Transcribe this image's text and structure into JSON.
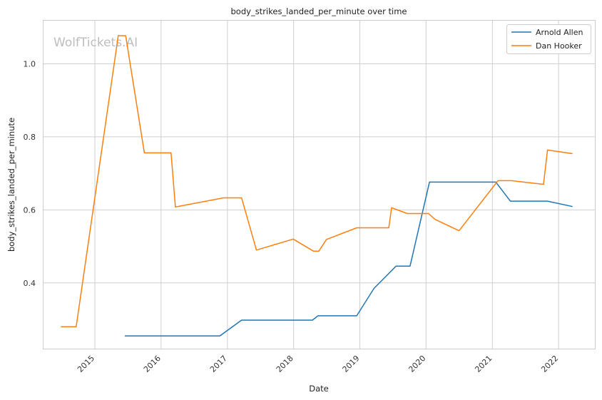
{
  "chart_data": {
    "type": "line",
    "title": "body_strikes_landed_per_minute over time",
    "xlabel": "Date",
    "ylabel": "body_strikes_landed_per_minute",
    "watermark": "WolfTickets.AI",
    "xlim": [
      "2014-03-20",
      "2022-07-20"
    ],
    "ylim": [
      0.22,
      1.12
    ],
    "x_ticks": [
      "2015",
      "2016",
      "2017",
      "2018",
      "2019",
      "2020",
      "2021",
      "2022"
    ],
    "y_ticks": [
      "0.4",
      "0.6",
      "0.8",
      "1.0"
    ],
    "legend_position": "top-right",
    "grid": true,
    "series": [
      {
        "name": "Arnold Allen",
        "color": "#1f77b4",
        "points": [
          [
            "2015-06-15",
            0.255
          ],
          [
            "2016-11-20",
            0.255
          ],
          [
            "2017-03-20",
            0.298
          ],
          [
            "2018-04-15",
            0.298
          ],
          [
            "2018-05-15",
            0.31
          ],
          [
            "2018-12-15",
            0.31
          ],
          [
            "2019-03-20",
            0.385
          ],
          [
            "2019-07-20",
            0.446
          ],
          [
            "2019-10-05",
            0.446
          ],
          [
            "2020-01-20",
            0.676
          ],
          [
            "2021-01-20",
            0.676
          ],
          [
            "2021-04-10",
            0.624
          ],
          [
            "2021-11-01",
            0.624
          ],
          [
            "2022-03-19",
            0.609
          ]
        ]
      },
      {
        "name": "Dan Hooker",
        "color": "#ff7f0e",
        "points": [
          [
            "2014-06-28",
            0.28
          ],
          [
            "2014-09-20",
            0.28
          ],
          [
            "2015-05-10",
            1.077
          ],
          [
            "2015-06-20",
            1.077
          ],
          [
            "2015-10-01",
            0.756
          ],
          [
            "2016-02-25",
            0.756
          ],
          [
            "2016-03-20",
            0.608
          ],
          [
            "2016-12-10",
            0.633
          ],
          [
            "2017-03-20",
            0.633
          ],
          [
            "2017-06-10",
            0.49
          ],
          [
            "2017-12-30",
            0.52
          ],
          [
            "2018-04-20",
            0.487
          ],
          [
            "2018-05-20",
            0.487
          ],
          [
            "2018-07-01",
            0.519
          ],
          [
            "2018-12-15",
            0.551
          ],
          [
            "2019-06-10",
            0.551
          ],
          [
            "2019-06-25",
            0.606
          ],
          [
            "2019-09-20",
            0.59
          ],
          [
            "2020-01-15",
            0.59
          ],
          [
            "2020-02-20",
            0.574
          ],
          [
            "2020-07-01",
            0.543
          ],
          [
            "2021-02-01",
            0.68
          ],
          [
            "2021-04-15",
            0.68
          ],
          [
            "2021-10-10",
            0.67
          ],
          [
            "2021-11-01",
            0.764
          ],
          [
            "2022-03-19",
            0.754
          ]
        ]
      }
    ]
  }
}
